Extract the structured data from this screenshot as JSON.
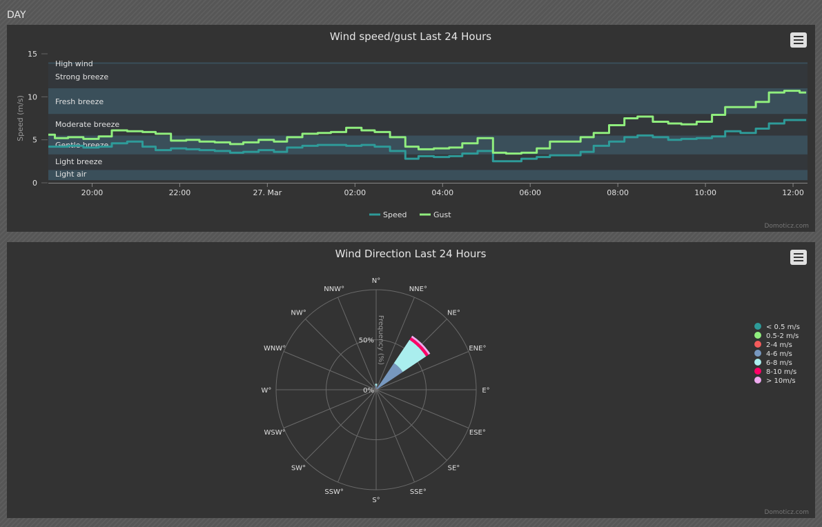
{
  "section": {
    "title": "DAY"
  },
  "credit": "Domoticz.com",
  "colors": {
    "speed": "#2e9b99",
    "gust": "#90ee7e",
    "band_light": "#3a4f5a",
    "band_dark": "#33373b"
  },
  "menu_icon": "hamburger-icon",
  "chart_data": [
    {
      "type": "line",
      "title": "Wind speed/gust Last 24 Hours",
      "ylabel": "Speed (m/s)",
      "xlabel": "",
      "ylim": [
        0,
        15
      ],
      "yticks": [
        0,
        5,
        10,
        15
      ],
      "xlim": [
        "26 Mar 19:00",
        "27 Mar 12:20"
      ],
      "xticks": [
        {
          "t": 20,
          "label": "20:00"
        },
        {
          "t": 22,
          "label": "22:00"
        },
        {
          "t": 24,
          "label": "27. Mar"
        },
        {
          "t": 26,
          "label": "02:00"
        },
        {
          "t": 28,
          "label": "04:00"
        },
        {
          "t": 30,
          "label": "06:00"
        },
        {
          "t": 32,
          "label": "08:00"
        },
        {
          "t": 34,
          "label": "10:00"
        },
        {
          "t": 36,
          "label": "12:00"
        }
      ],
      "plot_bands": [
        {
          "label": "Light air",
          "from": 0.3,
          "to": 1.5
        },
        {
          "label": "Light breeze",
          "from": 1.5,
          "to": 3.3
        },
        {
          "label": "Gentle breeze",
          "from": 3.3,
          "to": 5.5
        },
        {
          "label": "Moderate breeze",
          "from": 5.5,
          "to": 8
        },
        {
          "label": "Fresh breeze",
          "from": 8,
          "to": 11
        },
        {
          "label": "Strong breeze",
          "from": 11,
          "to": 14
        },
        {
          "label": "High wind",
          "from": 14,
          "to": 15
        }
      ],
      "legend": [
        "Speed",
        "Gust"
      ],
      "series": [
        {
          "name": "Speed",
          "x": [
            19.0,
            19.3,
            19.6,
            20.0,
            20.3,
            20.6,
            21.0,
            21.3,
            21.6,
            22.0,
            22.3,
            22.6,
            23.0,
            23.3,
            23.6,
            24.0,
            24.3,
            24.6,
            25.0,
            25.3,
            25.6,
            26.0,
            26.3,
            26.6,
            27.0,
            27.3,
            27.6,
            28.0,
            28.3,
            28.6,
            29.0,
            29.3,
            29.6,
            30.0,
            30.3,
            30.6,
            31.0,
            31.3,
            31.6,
            32.0,
            32.3,
            32.6,
            33.0,
            33.3,
            33.6,
            34.0,
            34.3,
            34.6,
            35.0,
            35.3,
            35.6,
            36.0,
            36.3
          ],
          "y": [
            4.2,
            4.2,
            4.3,
            4.1,
            4.2,
            4.6,
            4.8,
            4.2,
            3.8,
            4.0,
            3.9,
            3.8,
            3.7,
            3.5,
            3.6,
            3.8,
            3.6,
            4.1,
            4.3,
            4.4,
            4.4,
            4.3,
            4.4,
            4.2,
            3.7,
            2.8,
            3.1,
            3.0,
            3.1,
            3.4,
            3.7,
            2.5,
            2.5,
            2.8,
            3.0,
            3.2,
            3.2,
            3.6,
            4.3,
            4.8,
            5.3,
            5.5,
            5.3,
            5.0,
            5.1,
            5.2,
            5.4,
            6.0,
            5.8,
            6.3,
            6.9,
            7.3,
            7.3
          ]
        },
        {
          "name": "Gust",
          "x": [
            19.0,
            19.3,
            19.6,
            20.0,
            20.3,
            20.6,
            21.0,
            21.3,
            21.6,
            22.0,
            22.3,
            22.6,
            23.0,
            23.3,
            23.6,
            24.0,
            24.3,
            24.6,
            25.0,
            25.3,
            25.6,
            26.0,
            26.3,
            26.6,
            27.0,
            27.3,
            27.6,
            28.0,
            28.3,
            28.6,
            29.0,
            29.3,
            29.6,
            30.0,
            30.3,
            30.6,
            31.0,
            31.3,
            31.6,
            32.0,
            32.3,
            32.6,
            33.0,
            33.3,
            33.6,
            34.0,
            34.3,
            34.6,
            35.0,
            35.3,
            35.6,
            36.0,
            36.3
          ],
          "y": [
            5.6,
            5.2,
            5.3,
            5.1,
            5.4,
            6.1,
            6.0,
            5.9,
            5.7,
            4.9,
            5.0,
            4.8,
            4.7,
            4.5,
            4.7,
            5.0,
            4.8,
            5.3,
            5.7,
            5.8,
            5.9,
            6.4,
            6.1,
            5.9,
            5.3,
            4.2,
            3.9,
            4.0,
            4.1,
            4.6,
            5.2,
            3.5,
            3.4,
            3.5,
            4.0,
            4.8,
            4.8,
            5.3,
            5.8,
            6.7,
            7.5,
            7.7,
            7.1,
            6.9,
            6.8,
            7.1,
            7.9,
            8.8,
            8.8,
            9.4,
            10.5,
            10.7,
            10.5
          ]
        }
      ]
    },
    {
      "type": "pie",
      "subtype": "wind-rose",
      "title": "Wind Direction Last 24 Hours",
      "ylabel": "Frequency (%)",
      "ylim": [
        0,
        100
      ],
      "rticks": [
        {
          "v": 0,
          "label": "0%"
        },
        {
          "v": 50,
          "label": "50%"
        }
      ],
      "directions": [
        "N°",
        "NNE°",
        "NE°",
        "ENE°",
        "E°",
        "ESE°",
        "SE°",
        "SSE°",
        "S°",
        "SSW°",
        "SW°",
        "WSW°",
        "W°",
        "WNW°",
        "NW°",
        "NNW°"
      ],
      "legend_placement": "right",
      "series": [
        {
          "name": "< 0.5 m/s",
          "color": "#2e9b99",
          "values": [
            0,
            0,
            0,
            0,
            0,
            0,
            0,
            0,
            0,
            0,
            0,
            0,
            0,
            0,
            0,
            0
          ]
        },
        {
          "name": "0.5-2 m/s",
          "color": "#90ee7e",
          "values": [
            0,
            0,
            0,
            0,
            0,
            0,
            0,
            0,
            0,
            0,
            0,
            0,
            0,
            0,
            0,
            0
          ]
        },
        {
          "name": "2-4 m/s",
          "color": "#f45b5b",
          "values": [
            0,
            0,
            1,
            0,
            0,
            0,
            0,
            0,
            0,
            0,
            0,
            0,
            0,
            0,
            0,
            0
          ]
        },
        {
          "name": "4-6 m/s",
          "color": "#7798bf",
          "values": [
            4,
            0,
            31,
            0,
            0,
            0,
            0,
            0,
            0,
            0,
            0,
            0,
            0,
            0,
            0,
            0
          ]
        },
        {
          "name": "6-8 m/s",
          "color": "#aaeeee",
          "values": [
            2,
            0,
            28,
            0,
            0,
            0,
            0,
            0,
            0,
            0,
            0,
            0,
            0,
            0,
            0,
            0
          ]
        },
        {
          "name": "8-10 m/s",
          "color": "#ff0066",
          "values": [
            0,
            0,
            3,
            0,
            0,
            0,
            0,
            0,
            0,
            0,
            0,
            0,
            0,
            0,
            0,
            0
          ]
        },
        {
          "name": "> 10m/s",
          "color": "#eeaaee",
          "values": [
            0,
            0,
            2,
            0,
            0,
            0,
            0,
            0,
            0,
            0,
            0,
            0,
            0,
            0,
            0,
            0
          ]
        }
      ]
    }
  ]
}
